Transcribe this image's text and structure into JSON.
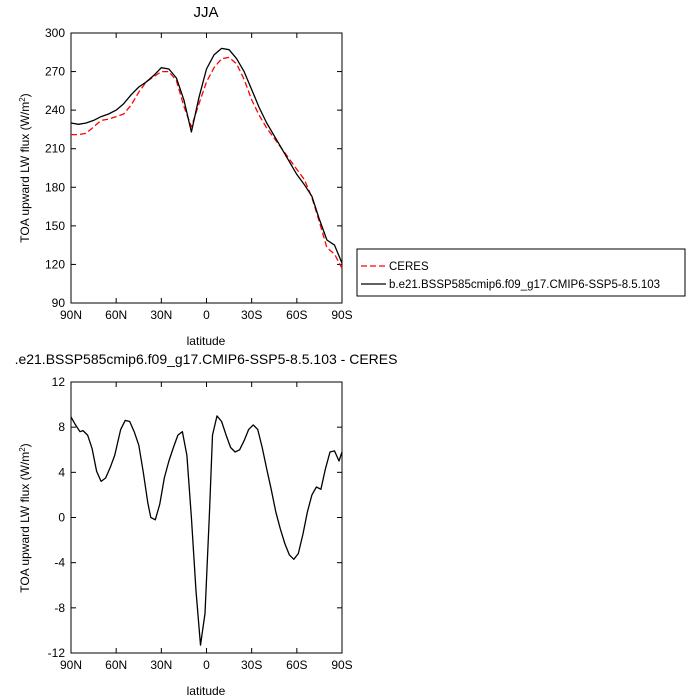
{
  "chart_data": [
    {
      "type": "line",
      "title": "JJA",
      "xlabel": "latitude",
      "ylabel": "TOA upward LW flux (W/m²)",
      "xlim": [
        90,
        -90
      ],
      "ylim": [
        90,
        300
      ],
      "x_ticks": [
        90,
        60,
        30,
        0,
        -30,
        -60,
        -90
      ],
      "x_tick_labels": [
        "90N",
        "60N",
        "30N",
        "0",
        "30S",
        "60S",
        "90S"
      ],
      "y_ticks": [
        90,
        120,
        150,
        180,
        210,
        240,
        270,
        300
      ],
      "y_tick_labels": [
        "90",
        "120",
        "150",
        "180",
        "210",
        "240",
        "270",
        "300"
      ],
      "legend": {
        "position": "right",
        "entries": [
          "CERES",
          "b.e21.BSSP585cmip6.f09_g17.CMIP6-SSP5-8.5.103"
        ]
      },
      "series": [
        {
          "name": "CERES",
          "style": "dashed",
          "color": "#ff0000",
          "x": [
            90,
            85,
            80,
            75,
            70,
            65,
            60,
            55,
            50,
            45,
            40,
            35,
            30,
            25,
            20,
            15,
            10,
            5,
            0,
            -5,
            -10,
            -15,
            -20,
            -25,
            -30,
            -35,
            -40,
            -45,
            -50,
            -55,
            -60,
            -65,
            -70,
            -75,
            -80,
            -85,
            -90
          ],
          "y": [
            221,
            221,
            222,
            227,
            232,
            233,
            235,
            237,
            244,
            254,
            262,
            266,
            270,
            270,
            263,
            243,
            227,
            245,
            262,
            273,
            280,
            281,
            276,
            264,
            248,
            236,
            226,
            218,
            210,
            202,
            194,
            186,
            172,
            153,
            133,
            128,
            117
          ]
        },
        {
          "name": "b.e21.BSSP585cmip6.f09_g17.CMIP6-SSP5-8.5.103",
          "style": "solid",
          "color": "#000000",
          "x": [
            90,
            85,
            80,
            75,
            70,
            65,
            60,
            55,
            50,
            45,
            40,
            35,
            30,
            25,
            20,
            15,
            10,
            5,
            0,
            -5,
            -10,
            -15,
            -20,
            -25,
            -30,
            -35,
            -40,
            -45,
            -50,
            -55,
            -60,
            -65,
            -70,
            -75,
            -80,
            -85,
            -90
          ],
          "y": [
            230,
            229,
            230,
            232,
            235,
            237,
            240,
            245,
            252,
            258,
            262,
            267,
            273,
            272,
            265,
            248,
            223,
            250,
            272,
            283,
            288,
            287,
            280,
            270,
            256,
            242,
            230,
            220,
            210,
            200,
            190,
            182,
            173,
            155,
            139,
            135,
            121
          ]
        }
      ]
    },
    {
      "type": "line",
      "title": ".e21.BSSP585cmip6.f09_g17.CMIP6-SSP5-8.5.103 - CERES",
      "xlabel": "latitude",
      "ylabel": "TOA upward LW flux (W/m²)",
      "xlim": [
        90,
        -90
      ],
      "ylim": [
        -12,
        12
      ],
      "x_ticks": [
        90,
        60,
        30,
        0,
        -30,
        -60,
        -90
      ],
      "x_tick_labels": [
        "90N",
        "60N",
        "30N",
        "0",
        "30S",
        "60S",
        "90S"
      ],
      "y_ticks": [
        12,
        8,
        4,
        0,
        -4,
        -8,
        -12
      ],
      "y_tick_labels": [
        "12",
        "8",
        "4",
        "0",
        "-4",
        "-8",
        "-12"
      ],
      "series": [
        {
          "style": "solid",
          "color": "#000000",
          "x": [
            90,
            87,
            84,
            82,
            79,
            76,
            73,
            70,
            67,
            64,
            61,
            57,
            54,
            51,
            48,
            45,
            42,
            39,
            37,
            34,
            31,
            28,
            25,
            22,
            19,
            16,
            13,
            10,
            7,
            4,
            1,
            -2,
            -4,
            -7,
            -10,
            -13,
            -16,
            -19,
            -22,
            -25,
            -28,
            -31,
            -34,
            -37,
            -40,
            -43,
            -46,
            -49,
            -52,
            -55,
            -58,
            -61,
            -64,
            -67,
            -70,
            -73,
            -76,
            -79,
            -82,
            -85,
            -88,
            -90
          ],
          "y": [
            8.9,
            8.2,
            7.6,
            7.7,
            7.3,
            6.1,
            4.1,
            3.2,
            3.5,
            4.4,
            5.5,
            7.8,
            8.6,
            8.5,
            7.6,
            6.4,
            4.0,
            1.3,
            0,
            -0.2,
            1.2,
            3.5,
            5.0,
            6.2,
            7.3,
            7.6,
            5.5,
            0,
            -6.5,
            -11.3,
            -8.5,
            0.5,
            7.3,
            9.0,
            8.5,
            7.3,
            6.2,
            5.8,
            6.0,
            6.8,
            7.8,
            8.2,
            7.8,
            6.2,
            4.3,
            2.5,
            0.5,
            -1.0,
            -2.3,
            -3.3,
            -3.7,
            -3.2,
            -1.5,
            0.5,
            2.0,
            2.7,
            2.5,
            4.3,
            5.8,
            5.9,
            5.0,
            5.8
          ]
        }
      ]
    }
  ]
}
